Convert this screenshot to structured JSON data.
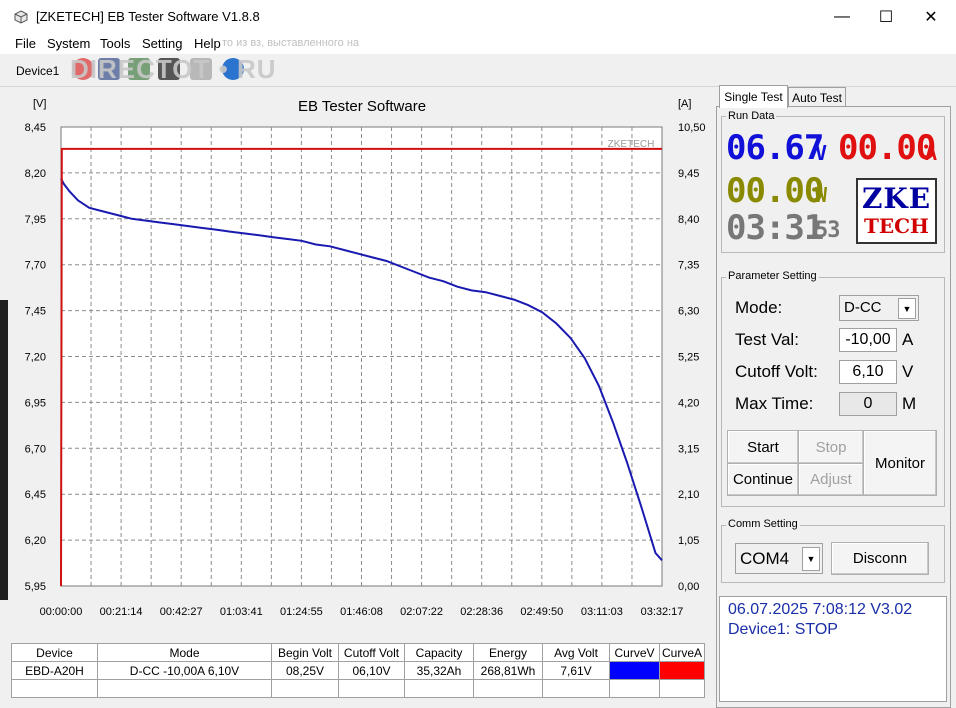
{
  "window": {
    "title": "[ZKETECH] EB Tester Software V1.8.8",
    "controls": [
      "—",
      "☐",
      "✕"
    ]
  },
  "menu": [
    "File",
    "System",
    "Tools",
    "Setting",
    "Help"
  ],
  "toolbar": {
    "device_label": "Device1",
    "watermark": "DIRECTOT • RU",
    "watermark_caption": "то из вз, выставленного на"
  },
  "tabs": {
    "single": "Single Test",
    "auto": "Auto Test"
  },
  "run_data": {
    "group_label": "Run Data",
    "voltage": "06.67",
    "voltage_unit": "V",
    "current": "00.00",
    "current_unit": "A",
    "power": "00.00",
    "power_unit": "W",
    "time": "03:31",
    "time_suffix": "53",
    "logo_top": "ZKE",
    "logo_bottom": "TECH"
  },
  "parameter": {
    "group_label": "Parameter Setting",
    "mode_label": "Mode:",
    "mode_value": "D-CC",
    "test_val_label": "Test Val:",
    "test_val_value": "-10,00",
    "test_val_unit": "A",
    "cutoff_label": "Cutoff Volt:",
    "cutoff_value": "6,10",
    "cutoff_unit": "V",
    "maxtime_label": "Max Time:",
    "maxtime_value": "0",
    "maxtime_unit": "M",
    "buttons": {
      "start": "Start",
      "stop": "Stop",
      "continue": "Continue",
      "adjust": "Adjust",
      "monitor": "Monitor"
    }
  },
  "comm": {
    "group_label": "Comm Setting",
    "port": "COM4",
    "disconnect": "Disconn"
  },
  "status": {
    "line1": "06.07.2025 7:08:12  V3.02",
    "line2": "Device1: STOP"
  },
  "table": {
    "headers": [
      "Device",
      "Mode",
      "Begin Volt",
      "Cutoff Volt",
      "Capacity",
      "Energy",
      "Avg Volt",
      "CurveV",
      "CurveA"
    ],
    "row": [
      "EBD-A20H",
      "D-CC -10,00A  6,10V",
      "08,25V",
      "06,10V",
      "35,32Ah",
      "268,81Wh",
      "7,61V",
      "",
      ""
    ],
    "curve_colors": {
      "voltage": "#0000ff",
      "current": "#ff0000"
    }
  },
  "chart_data": {
    "type": "line",
    "title": "EB Tester Software",
    "ylabel_left": "[V]",
    "ylabel_right": "[A]",
    "chart_watermark": "ZKETECH",
    "ylim_left": [
      5.95,
      8.45
    ],
    "ylim_right": [
      0,
      10.5
    ],
    "y_ticks_left": [
      "8,45",
      "8,20",
      "7,95",
      "7,70",
      "7,45",
      "7,20",
      "6,95",
      "6,70",
      "6,45",
      "6,20",
      "5,95"
    ],
    "y_ticks_right": [
      "10,50",
      "9,45",
      "8,40",
      "7,35",
      "6,30",
      "5,25",
      "4,20",
      "3,15",
      "2,10",
      "1,05",
      "0,00"
    ],
    "x_ticks": [
      "00:00:00",
      "00:21:14",
      "00:42:27",
      "01:03:41",
      "01:24:55",
      "01:46:08",
      "02:07:22",
      "02:28:36",
      "02:49:50",
      "03:11:03",
      "03:32:17"
    ],
    "grid": true,
    "series": [
      {
        "name": "CurveV",
        "color": "#1a1ab0",
        "axis": "left",
        "x_minutes": [
          0,
          1,
          3,
          6,
          10,
          15,
          20,
          25,
          30,
          35,
          40,
          45,
          50,
          55,
          60,
          65,
          70,
          75,
          80,
          85,
          90,
          95,
          100,
          105,
          110,
          115,
          120,
          125,
          130,
          135,
          140,
          145,
          150,
          155,
          160,
          165,
          170,
          175,
          180,
          185,
          190,
          195,
          200,
          205,
          210,
          212.3
        ],
        "values": [
          8.17,
          8.14,
          8.1,
          8.05,
          8.01,
          7.99,
          7.97,
          7.95,
          7.94,
          7.93,
          7.92,
          7.91,
          7.9,
          7.89,
          7.88,
          7.87,
          7.86,
          7.85,
          7.84,
          7.83,
          7.81,
          7.8,
          7.78,
          7.76,
          7.74,
          7.72,
          7.69,
          7.66,
          7.63,
          7.61,
          7.58,
          7.56,
          7.55,
          7.53,
          7.51,
          7.48,
          7.44,
          7.38,
          7.3,
          7.19,
          7.04,
          6.84,
          6.62,
          6.38,
          6.13,
          6.09
        ]
      },
      {
        "name": "CurveA",
        "color": "#d01010",
        "axis": "right",
        "x_minutes": [
          0,
          0.3,
          212.3
        ],
        "values": [
          0,
          10.0,
          10.0
        ]
      }
    ]
  }
}
